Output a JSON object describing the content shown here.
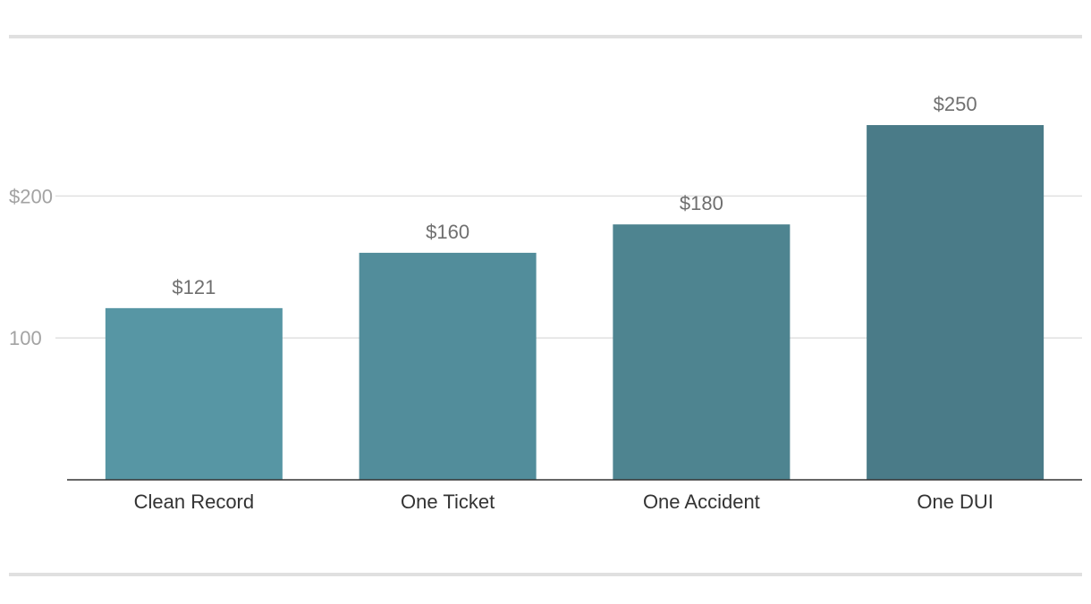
{
  "chart_data": {
    "type": "bar",
    "categories": [
      "Clean Record",
      "One Ticket",
      "One Accident",
      "One DUI"
    ],
    "values": [
      121,
      160,
      180,
      250
    ],
    "data_labels": [
      "$121",
      "$160",
      "$180",
      "$250"
    ],
    "title": "",
    "xlabel": "",
    "ylabel": "",
    "ylim": [
      0,
      250
    ],
    "yticks": [
      {
        "value": 100,
        "label": "100"
      },
      {
        "value": 200,
        "label": "$200"
      }
    ],
    "grid": true,
    "legend": "none",
    "bar_colors": [
      "#5796a4",
      "#528d9b",
      "#4e8490",
      "#4a7b88"
    ],
    "gridline_color": "#e0e0e0",
    "axis_color": "#333333"
  }
}
